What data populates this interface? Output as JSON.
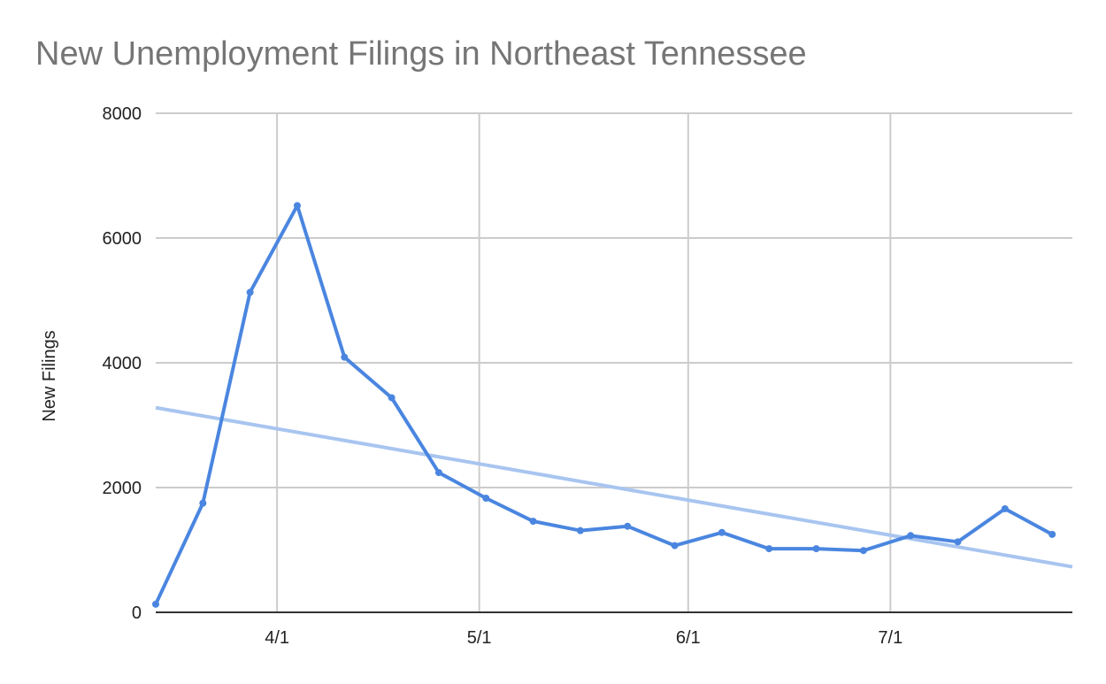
{
  "chart_data": {
    "type": "line",
    "title": "New Unemployment Filings in Northeast Tennessee",
    "xlabel": "",
    "ylabel": "New Filings",
    "ylim": [
      0,
      8000
    ],
    "yticks": [
      0,
      2000,
      4000,
      6000,
      8000
    ],
    "xlim": [
      "2020-03-14",
      "2020-07-28"
    ],
    "xticks": [
      {
        "date": "2020-04-01",
        "label": "4/1"
      },
      {
        "date": "2020-05-01",
        "label": "5/1"
      },
      {
        "date": "2020-06-01",
        "label": "6/1"
      },
      {
        "date": "2020-07-01",
        "label": "7/1"
      }
    ],
    "grid": true,
    "legend": "none",
    "series": [
      {
        "color": "#4a86e0",
        "points": [
          {
            "x": "2020-03-14",
            "y": 130
          },
          {
            "x": "2020-03-21",
            "y": 1750
          },
          {
            "x": "2020-03-28",
            "y": 5130
          },
          {
            "x": "2020-04-04",
            "y": 6520
          },
          {
            "x": "2020-04-11",
            "y": 4090
          },
          {
            "x": "2020-04-18",
            "y": 3440
          },
          {
            "x": "2020-04-25",
            "y": 2240
          },
          {
            "x": "2020-05-02",
            "y": 1830
          },
          {
            "x": "2020-05-09",
            "y": 1460
          },
          {
            "x": "2020-05-16",
            "y": 1310
          },
          {
            "x": "2020-05-23",
            "y": 1380
          },
          {
            "x": "2020-05-30",
            "y": 1070
          },
          {
            "x": "2020-06-06",
            "y": 1280
          },
          {
            "x": "2020-06-13",
            "y": 1020
          },
          {
            "x": "2020-06-20",
            "y": 1020
          },
          {
            "x": "2020-06-27",
            "y": 990
          },
          {
            "x": "2020-07-04",
            "y": 1230
          },
          {
            "x": "2020-07-11",
            "y": 1130
          },
          {
            "x": "2020-07-18",
            "y": 1660
          },
          {
            "x": "2020-07-25",
            "y": 1250
          }
        ]
      }
    ],
    "trendline": {
      "type": "linear",
      "color": "#a8c5f0",
      "start": {
        "x": "2020-03-14",
        "y": 3280
      },
      "end": {
        "x": "2020-07-28",
        "y": 730
      }
    }
  }
}
